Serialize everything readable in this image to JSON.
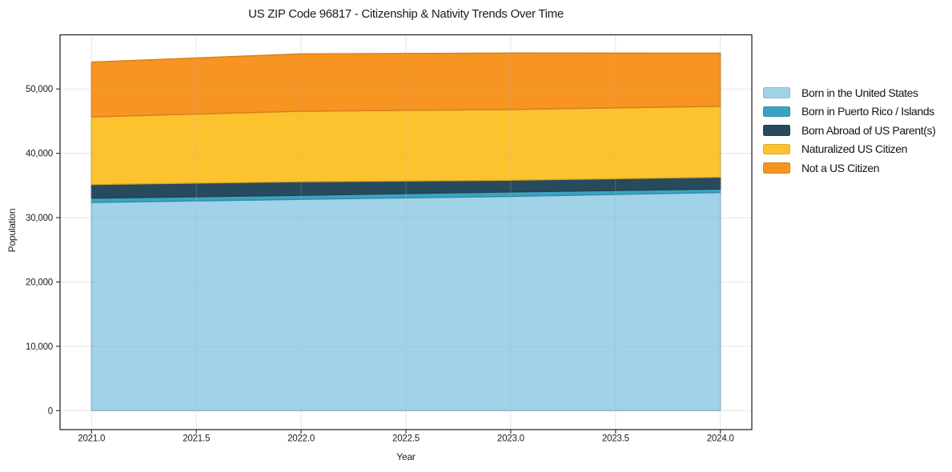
{
  "page": {
    "background": "#ffffff"
  },
  "chart_data": {
    "type": "area",
    "stacked": true,
    "title": "US ZIP Code 96817 - Citizenship & Nativity Trends Over Time",
    "xlabel": "Year",
    "ylabel": "Population",
    "x": [
      2021,
      2022,
      2023,
      2024
    ],
    "series": [
      {
        "name": "Born in the United States",
        "color": "#a0d2e8",
        "values": [
          32350,
          32850,
          33300,
          33900
        ]
      },
      {
        "name": "Born in Puerto Rico / Islands",
        "color": "#3ba3c1",
        "values": [
          680,
          620,
          700,
          540
        ]
      },
      {
        "name": "Born Abroad of US Parent(s)",
        "color": "#284a5d",
        "values": [
          2120,
          2120,
          1820,
          1860
        ]
      },
      {
        "name": "Naturalized US Citizen",
        "color": "#fdc32e",
        "values": [
          10500,
          10950,
          10980,
          11010
        ]
      },
      {
        "name": "Not a US Citizen",
        "color": "#f79422",
        "values": [
          8540,
          8920,
          8790,
          8250
        ]
      }
    ],
    "xlim": [
      2020.85,
      2024.15
    ],
    "ylim": [
      -2950,
      58420
    ],
    "xtick_values": [
      2021.0,
      2021.5,
      2022.0,
      2022.5,
      2023.0,
      2023.5,
      2024.0
    ],
    "xtick_labels": [
      "2021.0",
      "2021.5",
      "2022.0",
      "2022.5",
      "2023.0",
      "2023.5",
      "2024.0"
    ],
    "ytick_values": [
      0,
      10000,
      20000,
      30000,
      40000,
      50000
    ],
    "ytick_labels": [
      "0",
      "10,000",
      "20,000",
      "30,000",
      "40,000",
      "50,000"
    ],
    "grid": true,
    "grid_color": "#b0b0be",
    "axis_color": "#2b2b2b",
    "legend_position": "right"
  }
}
